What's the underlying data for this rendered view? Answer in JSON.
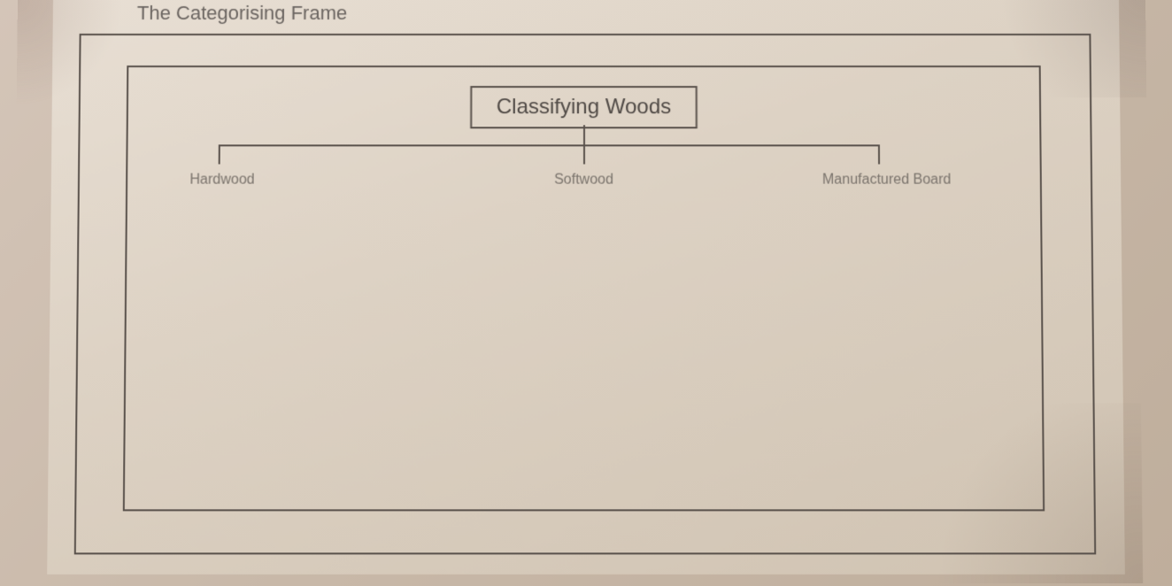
{
  "header": {
    "title": "The Categorising Frame",
    "title_fontsize": 22,
    "title_color": "#6a6460"
  },
  "diagram": {
    "type": "tree",
    "root": {
      "label": "Classifying Woods",
      "fontsize": 24,
      "text_color": "#504a46",
      "border_color": "#5a524c",
      "border_width": 2
    },
    "categories": [
      {
        "label": "Hardwood",
        "position": "left"
      },
      {
        "label": "Softwood",
        "position": "center"
      },
      {
        "label": "Manufactured Board",
        "position": "right"
      }
    ],
    "category_style": {
      "fontsize": 16,
      "text_color": "#7a736c"
    },
    "connector": {
      "color": "#5a524c",
      "width": 2
    },
    "frame": {
      "outer_border_color": "#5a524c",
      "inner_border_color": "#5a524c",
      "border_width": 2
    }
  },
  "page_style": {
    "background_gradient": [
      "#e8dfd4",
      "#ddd2c4",
      "#d0c3b2"
    ],
    "backdrop_gradient": [
      "#d4c5b8",
      "#c8b8a8",
      "#bfae9c"
    ],
    "font_family": "Arial"
  }
}
